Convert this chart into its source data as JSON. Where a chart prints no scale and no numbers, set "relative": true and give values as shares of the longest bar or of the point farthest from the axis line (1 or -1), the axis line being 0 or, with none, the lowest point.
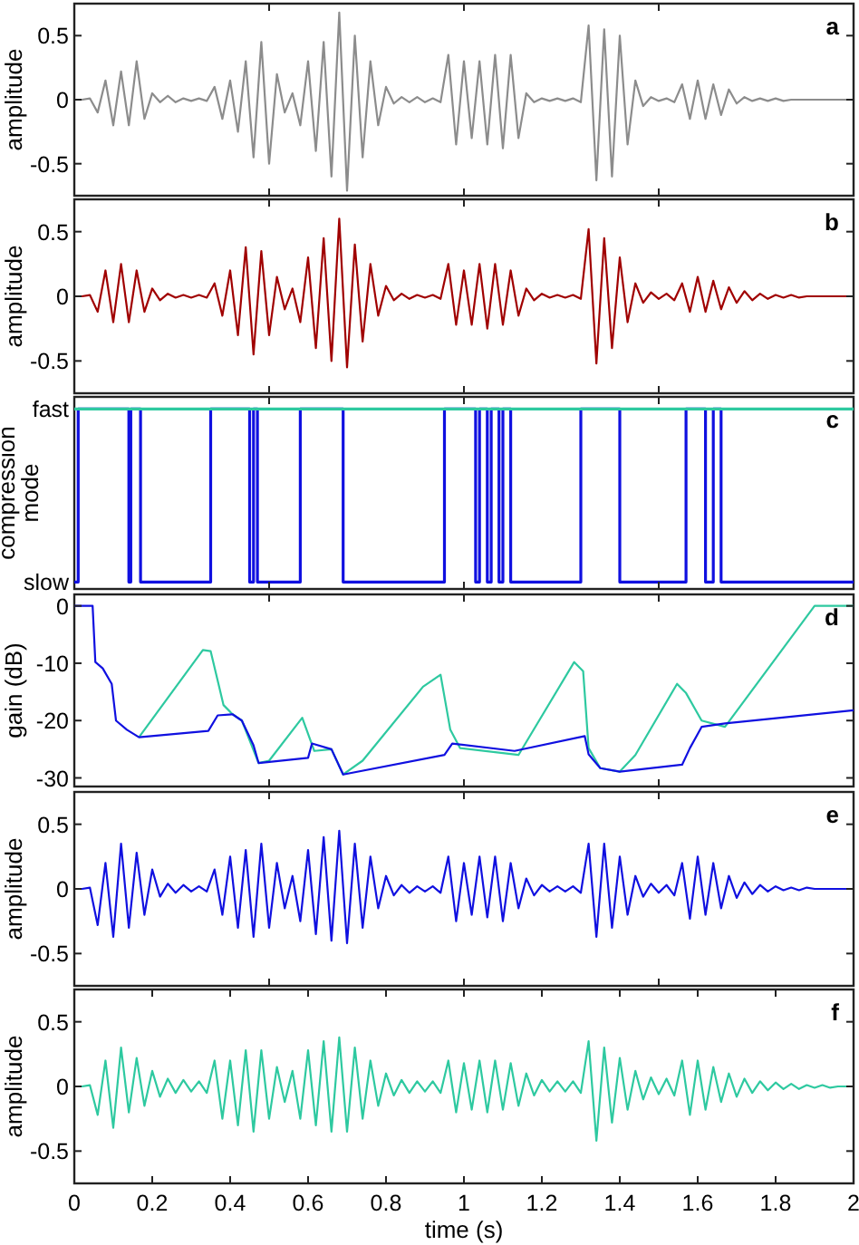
{
  "chart_data": [
    {
      "type": "line",
      "ylabel": "amplitude",
      "annotations": [
        "a"
      ],
      "xlim": [
        0,
        2
      ],
      "ylim": [
        -0.75,
        0.75
      ],
      "yticks": [
        -0.5,
        0,
        0.5
      ],
      "xticks": [
        {
          "value": 0.5,
          "label": null
        },
        {
          "value": 1,
          "label": null
        },
        {
          "value": 1.5,
          "label": null
        }
      ],
      "tick_labels": "y",
      "x": [
        0,
        0.02,
        0.04,
        0.06,
        0.08,
        0.1,
        0.12,
        0.14,
        0.16,
        0.18,
        0.2,
        0.22,
        0.24,
        0.26,
        0.28,
        0.3,
        0.32,
        0.34,
        0.36,
        0.38,
        0.4,
        0.42,
        0.44,
        0.46,
        0.48,
        0.5,
        0.52,
        0.54,
        0.56,
        0.58,
        0.6,
        0.62,
        0.64,
        0.66,
        0.68,
        0.7,
        0.72,
        0.74,
        0.76,
        0.78,
        0.8,
        0.82,
        0.84,
        0.86,
        0.88,
        0.9,
        0.92,
        0.94,
        0.96,
        0.98,
        1,
        1.02,
        1.04,
        1.06,
        1.08,
        1.1,
        1.12,
        1.14,
        1.16,
        1.18,
        1.2,
        1.22,
        1.24,
        1.26,
        1.28,
        1.3,
        1.32,
        1.34,
        1.36,
        1.38,
        1.4,
        1.42,
        1.44,
        1.46,
        1.48,
        1.5,
        1.52,
        1.54,
        1.56,
        1.58,
        1.6,
        1.62,
        1.64,
        1.66,
        1.68,
        1.7,
        1.72,
        1.74,
        1.76,
        1.78,
        1.8,
        1.82,
        1.84,
        1.86,
        1.88,
        1.9,
        1.92,
        1.94,
        1.96,
        1.98,
        2
      ],
      "series": [
        {
          "color": "#8c8c8c",
          "values": [
            0,
            0,
            0.01,
            -0.1,
            0.15,
            -0.2,
            0.22,
            -0.2,
            0.3,
            -0.15,
            0.05,
            -0.02,
            0.03,
            -0.02,
            0.01,
            -0.01,
            0.01,
            -0.01,
            0.1,
            -0.15,
            0.15,
            -0.25,
            0.3,
            -0.45,
            0.45,
            -0.5,
            0.2,
            -0.1,
            0.05,
            -0.2,
            0.3,
            -0.4,
            0.45,
            -0.6,
            0.68,
            -0.71,
            0.5,
            -0.45,
            0.3,
            -0.2,
            0.1,
            -0.03,
            0.02,
            -0.02,
            0.02,
            -0.02,
            0.01,
            -0.02,
            0.35,
            -0.35,
            0.3,
            -0.3,
            0.3,
            -0.35,
            0.35,
            -0.38,
            0.35,
            -0.3,
            0.05,
            -0.02,
            0.01,
            -0.01,
            0.01,
            -0.01,
            0.01,
            -0.02,
            0.58,
            -0.63,
            0.55,
            -0.6,
            0.5,
            -0.35,
            0.15,
            -0.05,
            0.02,
            -0.01,
            0.01,
            -0.02,
            0.12,
            -0.15,
            0.15,
            -0.15,
            0.12,
            -0.12,
            0.08,
            -0.03,
            0.02,
            -0.01,
            0.01,
            -0.01,
            0.01,
            -0.01,
            0,
            0,
            0,
            0,
            0,
            0,
            0,
            0,
            0
          ]
        }
      ]
    },
    {
      "type": "line",
      "ylabel": "amplitude",
      "annotations": [
        "b"
      ],
      "xlim": [
        0,
        2
      ],
      "ylim": [
        -0.75,
        0.75
      ],
      "yticks": [
        -0.5,
        0,
        0.5
      ],
      "xticks": [
        {
          "value": 0.5,
          "label": null
        },
        {
          "value": 1,
          "label": null
        },
        {
          "value": 1.5,
          "label": null
        }
      ],
      "tick_labels": "y",
      "x": [
        0,
        0.02,
        0.04,
        0.06,
        0.08,
        0.1,
        0.12,
        0.14,
        0.16,
        0.18,
        0.2,
        0.22,
        0.24,
        0.26,
        0.28,
        0.3,
        0.32,
        0.34,
        0.36,
        0.38,
        0.4,
        0.42,
        0.44,
        0.46,
        0.48,
        0.5,
        0.52,
        0.54,
        0.56,
        0.58,
        0.6,
        0.62,
        0.64,
        0.66,
        0.68,
        0.7,
        0.72,
        0.74,
        0.76,
        0.78,
        0.8,
        0.82,
        0.84,
        0.86,
        0.88,
        0.9,
        0.92,
        0.94,
        0.96,
        0.98,
        1,
        1.02,
        1.04,
        1.06,
        1.08,
        1.1,
        1.12,
        1.14,
        1.16,
        1.18,
        1.2,
        1.22,
        1.24,
        1.26,
        1.28,
        1.3,
        1.32,
        1.34,
        1.36,
        1.38,
        1.4,
        1.42,
        1.44,
        1.46,
        1.48,
        1.5,
        1.52,
        1.54,
        1.56,
        1.58,
        1.6,
        1.62,
        1.64,
        1.66,
        1.68,
        1.7,
        1.72,
        1.74,
        1.76,
        1.78,
        1.8,
        1.82,
        1.84,
        1.86,
        1.88,
        1.9,
        1.92,
        1.94,
        1.96,
        1.98,
        2
      ],
      "series": [
        {
          "color": "#a00000",
          "values": [
            0,
            0,
            0.01,
            -0.12,
            0.2,
            -0.2,
            0.25,
            -0.2,
            0.2,
            -0.12,
            0.06,
            -0.03,
            0.02,
            -0.01,
            0.01,
            -0.01,
            0.01,
            -0.01,
            0.1,
            -0.15,
            0.2,
            -0.3,
            0.38,
            -0.45,
            0.35,
            -0.3,
            0.15,
            -0.1,
            0.06,
            -0.2,
            0.3,
            -0.4,
            0.45,
            -0.5,
            0.6,
            -0.55,
            0.4,
            -0.35,
            0.25,
            -0.15,
            0.08,
            -0.03,
            0.02,
            -0.02,
            0.01,
            -0.01,
            0.01,
            -0.02,
            0.25,
            -0.22,
            0.2,
            -0.22,
            0.25,
            -0.25,
            0.25,
            -0.22,
            0.2,
            -0.15,
            0.06,
            -0.03,
            0.02,
            -0.01,
            0.01,
            -0.01,
            0.01,
            -0.02,
            0.52,
            -0.52,
            0.45,
            -0.4,
            0.3,
            -0.2,
            0.1,
            -0.05,
            0.03,
            -0.02,
            0.02,
            -0.03,
            0.1,
            -0.12,
            0.15,
            -0.12,
            0.12,
            -0.1,
            0.07,
            -0.05,
            0.04,
            -0.03,
            0.02,
            -0.02,
            0.01,
            -0.01,
            0.01,
            -0.01,
            0,
            0,
            0,
            0,
            0,
            0,
            0
          ]
        }
      ]
    },
    {
      "type": "step",
      "ylabel": "compression mode",
      "annotations": [
        "c",
        "fast",
        "slow"
      ],
      "relative": true,
      "xlim": [
        0,
        2
      ],
      "xticks": [
        {
          "value": 0.5,
          "label": null
        },
        {
          "value": 1,
          "label": null
        },
        {
          "value": 1.5,
          "label": null
        }
      ],
      "tick_labels": "y",
      "series": [
        {
          "color": "#1010e0",
          "x": [
            0,
            0.01,
            0.14,
            0.145,
            0.17,
            0.35,
            0.45,
            0.46,
            0.47,
            0.58,
            0.69,
            0.95,
            1.03,
            1.04,
            1.06,
            1.07,
            1.09,
            1.1,
            1.12,
            1.3,
            1.4,
            1.57,
            1.62,
            1.64,
            1.66,
            2
          ],
          "values": [
            0,
            1,
            0,
            1,
            0,
            1,
            0,
            1,
            0,
            1,
            0,
            1,
            0,
            1,
            0,
            1,
            0,
            1,
            0,
            1,
            0,
            1,
            0,
            1,
            0,
            0
          ]
        },
        {
          "color": "#2ec9a0",
          "x": [
            0,
            2
          ],
          "values": [
            1,
            1
          ]
        }
      ]
    },
    {
      "type": "line",
      "ylabel": "gain (dB)",
      "annotations": [
        "d"
      ],
      "xlim": [
        0,
        2
      ],
      "ylim": [
        -31.5,
        2
      ],
      "yticks": [
        -30,
        -20,
        -10,
        0
      ],
      "xticks": [
        {
          "value": 0.5,
          "label": null
        },
        {
          "value": 1,
          "label": null
        },
        {
          "value": 1.5,
          "label": null
        }
      ],
      "tick_labels": "y",
      "series": [
        {
          "color": "#2ec9a0",
          "x": [
            0.166,
            0.33,
            0.35,
            0.383,
            0.406,
            0.43,
            0.473,
            0.5,
            0.585,
            0.616,
            0.66,
            0.69,
            0.74,
            0.895,
            0.94,
            0.965,
            0.99,
            1.14,
            1.283,
            1.306,
            1.32,
            1.35,
            1.4,
            1.44,
            1.547,
            1.57,
            1.61,
            1.67,
            1.9,
            2
          ],
          "values": [
            -22.9,
            -7.7,
            -7.9,
            -17.3,
            -18.9,
            -20,
            -27.4,
            -27,
            -19.5,
            -25.3,
            -25,
            -29.4,
            -27,
            -14.1,
            -12,
            -21.6,
            -24.8,
            -26,
            -9.8,
            -11.4,
            -24.8,
            -28.3,
            -28.9,
            -26,
            -13.6,
            -15.2,
            -20,
            -21.1,
            0,
            0
          ]
        },
        {
          "color": "#1010e0",
          "x": [
            0,
            0.047,
            0.054,
            0.073,
            0.096,
            0.107,
            0.135,
            0.166,
            0.344,
            0.368,
            0.406,
            0.43,
            0.46,
            0.473,
            0.6,
            0.61,
            0.66,
            0.69,
            0.95,
            0.97,
            1.13,
            1.31,
            1.32,
            1.35,
            1.4,
            1.56,
            1.58,
            1.61,
            1.67,
            2
          ],
          "values": [
            0,
            0,
            -9.8,
            -10.9,
            -13.6,
            -20,
            -21.6,
            -22.9,
            -21.8,
            -19.1,
            -18.9,
            -20,
            -24.3,
            -27.4,
            -26.5,
            -24,
            -25,
            -29.4,
            -26,
            -24,
            -25.3,
            -22.7,
            -25.9,
            -28.3,
            -28.9,
            -27.7,
            -24.8,
            -21.1,
            -20.5,
            -18.2
          ]
        }
      ]
    },
    {
      "type": "line",
      "ylabel": "amplitude",
      "annotations": [
        "e"
      ],
      "xlim": [
        0,
        2
      ],
      "ylim": [
        -0.75,
        0.75
      ],
      "yticks": [
        -0.5,
        0,
        0.5
      ],
      "xticks": [
        {
          "value": 0.5,
          "label": null
        },
        {
          "value": 1,
          "label": null
        },
        {
          "value": 1.5,
          "label": null
        }
      ],
      "tick_labels": "y",
      "x": [
        0,
        0.02,
        0.04,
        0.06,
        0.08,
        0.1,
        0.12,
        0.14,
        0.16,
        0.18,
        0.2,
        0.22,
        0.24,
        0.26,
        0.28,
        0.3,
        0.32,
        0.34,
        0.36,
        0.38,
        0.4,
        0.42,
        0.44,
        0.46,
        0.48,
        0.5,
        0.52,
        0.54,
        0.56,
        0.58,
        0.6,
        0.62,
        0.64,
        0.66,
        0.68,
        0.7,
        0.72,
        0.74,
        0.76,
        0.78,
        0.8,
        0.82,
        0.84,
        0.86,
        0.88,
        0.9,
        0.92,
        0.94,
        0.96,
        0.98,
        1,
        1.02,
        1.04,
        1.06,
        1.08,
        1.1,
        1.12,
        1.14,
        1.16,
        1.18,
        1.2,
        1.22,
        1.24,
        1.26,
        1.28,
        1.3,
        1.32,
        1.34,
        1.36,
        1.38,
        1.4,
        1.42,
        1.44,
        1.46,
        1.48,
        1.5,
        1.52,
        1.54,
        1.56,
        1.58,
        1.6,
        1.62,
        1.64,
        1.66,
        1.68,
        1.7,
        1.72,
        1.74,
        1.76,
        1.78,
        1.8,
        1.82,
        1.84,
        1.86,
        1.88,
        1.9,
        1.92,
        1.94,
        1.96,
        1.98,
        2
      ],
      "series": [
        {
          "color": "#1010e0",
          "values": [
            0,
            0,
            0.01,
            -0.28,
            0.2,
            -0.37,
            0.35,
            -0.3,
            0.28,
            -0.2,
            0.15,
            -0.06,
            0.04,
            -0.03,
            0.03,
            -0.02,
            0.02,
            -0.02,
            0.15,
            -0.2,
            0.25,
            -0.3,
            0.3,
            -0.37,
            0.35,
            -0.3,
            0.2,
            -0.15,
            0.1,
            -0.25,
            0.3,
            -0.35,
            0.4,
            -0.4,
            0.45,
            -0.42,
            0.35,
            -0.3,
            0.25,
            -0.15,
            0.1,
            -0.05,
            0.03,
            -0.03,
            0.02,
            -0.02,
            0.02,
            -0.03,
            0.25,
            -0.25,
            0.2,
            -0.2,
            0.25,
            -0.22,
            0.25,
            -0.25,
            0.2,
            -0.15,
            0.08,
            -0.05,
            0.03,
            -0.02,
            0.02,
            -0.02,
            0.02,
            -0.03,
            0.35,
            -0.37,
            0.35,
            -0.3,
            0.25,
            -0.2,
            0.1,
            -0.06,
            0.04,
            -0.03,
            0.03,
            -0.05,
            0.2,
            -0.23,
            0.25,
            -0.2,
            0.2,
            -0.15,
            0.1,
            -0.07,
            0.05,
            -0.04,
            0.03,
            -0.02,
            0.02,
            -0.01,
            0.01,
            -0.01,
            0.01,
            0,
            0,
            0,
            0,
            0,
            0
          ]
        }
      ]
    },
    {
      "type": "line",
      "ylabel": "amplitude",
      "xlabel": "time (s)",
      "annotations": [
        "f"
      ],
      "xlim": [
        0,
        2
      ],
      "ylim": [
        -0.75,
        0.75
      ],
      "yticks": [
        -0.5,
        0,
        0.5
      ],
      "xticks": [
        0,
        0.2,
        0.4,
        0.6,
        0.8,
        1,
        1.2,
        1.4,
        1.6,
        1.8,
        2
      ],
      "x": [
        0,
        0.02,
        0.04,
        0.06,
        0.08,
        0.1,
        0.12,
        0.14,
        0.16,
        0.18,
        0.2,
        0.22,
        0.24,
        0.26,
        0.28,
        0.3,
        0.32,
        0.34,
        0.36,
        0.38,
        0.4,
        0.42,
        0.44,
        0.46,
        0.48,
        0.5,
        0.52,
        0.54,
        0.56,
        0.58,
        0.6,
        0.62,
        0.64,
        0.66,
        0.68,
        0.7,
        0.72,
        0.74,
        0.76,
        0.78,
        0.8,
        0.82,
        0.84,
        0.86,
        0.88,
        0.9,
        0.92,
        0.94,
        0.96,
        0.98,
        1,
        1.02,
        1.04,
        1.06,
        1.08,
        1.1,
        1.12,
        1.14,
        1.16,
        1.18,
        1.2,
        1.22,
        1.24,
        1.26,
        1.28,
        1.3,
        1.32,
        1.34,
        1.36,
        1.38,
        1.4,
        1.42,
        1.44,
        1.46,
        1.48,
        1.5,
        1.52,
        1.54,
        1.56,
        1.58,
        1.6,
        1.62,
        1.64,
        1.66,
        1.68,
        1.7,
        1.72,
        1.74,
        1.76,
        1.78,
        1.8,
        1.82,
        1.84,
        1.86,
        1.88,
        1.9,
        1.92,
        1.94,
        1.96,
        1.98,
        2
      ],
      "series": [
        {
          "color": "#2ec9a0",
          "values": [
            0,
            0,
            0.01,
            -0.22,
            0.2,
            -0.32,
            0.3,
            -0.2,
            0.22,
            -0.15,
            0.12,
            -0.08,
            0.06,
            -0.05,
            0.05,
            -0.04,
            0.04,
            -0.05,
            0.2,
            -0.25,
            0.2,
            -0.3,
            0.28,
            -0.35,
            0.28,
            -0.25,
            0.15,
            -0.12,
            0.12,
            -0.25,
            0.28,
            -0.3,
            0.35,
            -0.35,
            0.38,
            -0.35,
            0.3,
            -0.25,
            0.2,
            -0.15,
            0.1,
            -0.07,
            0.05,
            -0.05,
            0.04,
            -0.04,
            0.04,
            -0.05,
            0.2,
            -0.2,
            0.18,
            -0.18,
            0.2,
            -0.2,
            0.2,
            -0.18,
            0.18,
            -0.15,
            0.1,
            -0.07,
            0.05,
            -0.04,
            0.04,
            -0.04,
            0.04,
            -0.05,
            0.35,
            -0.42,
            0.3,
            -0.28,
            0.22,
            -0.18,
            0.12,
            -0.1,
            0.07,
            -0.06,
            0.06,
            -0.07,
            0.2,
            -0.22,
            0.2,
            -0.18,
            0.15,
            -0.12,
            0.1,
            -0.08,
            0.06,
            -0.05,
            0.04,
            -0.03,
            0.03,
            -0.02,
            0.02,
            -0.02,
            0.01,
            -0.01,
            0.01,
            -0.01,
            0,
            0,
            0
          ]
        }
      ]
    }
  ]
}
